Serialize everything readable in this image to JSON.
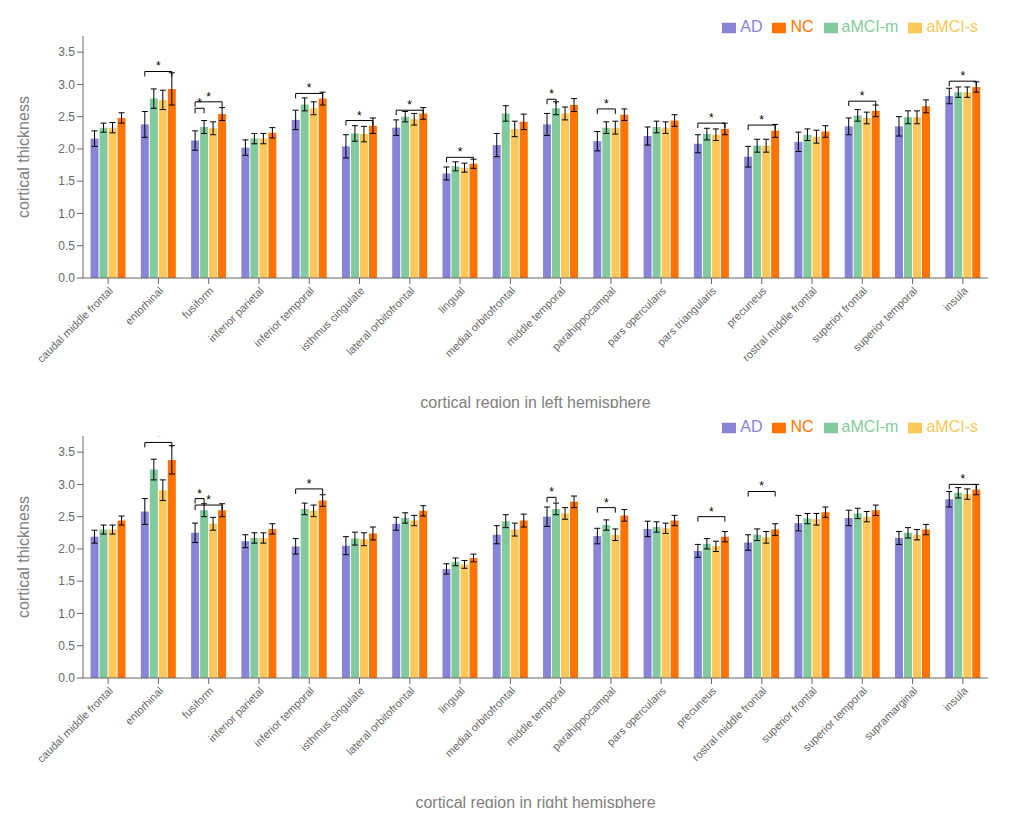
{
  "chart_data": [
    {
      "type": "bar",
      "xlabel": "cortical region in left hemisphere",
      "ylabel": "cortical thickness",
      "categories": [
        "caudal middle frontal",
        "entorhinal",
        "fusiform",
        "inferior parietal",
        "inferior temporal",
        "isthmus cingulate",
        "lateral orbitofrontal",
        "lingual",
        "medial orbitofrontal",
        "middle temporal",
        "parahippocampal",
        "pars opercularis",
        "pars triangularis",
        "precuneus",
        "rostral middle frontal",
        "superior frontal",
        "superior temporal",
        "insula"
      ],
      "series": [
        {
          "name": "AD",
          "color": "#8884d8",
          "values": [
            2.16,
            2.38,
            2.13,
            2.02,
            2.45,
            2.04,
            2.33,
            1.62,
            2.06,
            2.38,
            2.12,
            2.2,
            2.08,
            1.88,
            2.11,
            2.35,
            2.35,
            2.82
          ],
          "errors": [
            0.12,
            0.2,
            0.15,
            0.12,
            0.15,
            0.18,
            0.12,
            0.1,
            0.18,
            0.17,
            0.15,
            0.14,
            0.14,
            0.16,
            0.15,
            0.13,
            0.15,
            0.12
          ]
        },
        {
          "name": "aMCI-m",
          "color": "#82ca9d",
          "values": [
            2.33,
            2.78,
            2.34,
            2.16,
            2.69,
            2.24,
            2.5,
            1.73,
            2.55,
            2.63,
            2.33,
            2.34,
            2.23,
            2.05,
            2.22,
            2.52,
            2.49,
            2.88
          ],
          "errors": [
            0.07,
            0.15,
            0.1,
            0.08,
            0.1,
            0.12,
            0.08,
            0.07,
            0.12,
            0.1,
            0.09,
            0.09,
            0.09,
            0.1,
            0.09,
            0.09,
            0.1,
            0.08
          ]
        },
        {
          "name": "aMCI-s",
          "color": "#ffc658",
          "values": [
            2.33,
            2.76,
            2.32,
            2.16,
            2.63,
            2.23,
            2.46,
            1.71,
            2.31,
            2.55,
            2.33,
            2.33,
            2.22,
            2.05,
            2.19,
            2.48,
            2.49,
            2.88
          ],
          "errors": [
            0.08,
            0.15,
            0.1,
            0.08,
            0.1,
            0.12,
            0.09,
            0.07,
            0.12,
            0.1,
            0.1,
            0.09,
            0.09,
            0.1,
            0.1,
            0.09,
            0.1,
            0.08
          ]
        },
        {
          "name": "NC",
          "color": "#ff7300",
          "values": [
            2.48,
            2.93,
            2.54,
            2.25,
            2.78,
            2.36,
            2.55,
            1.77,
            2.42,
            2.68,
            2.53,
            2.44,
            2.31,
            2.28,
            2.27,
            2.59,
            2.66,
            2.96
          ],
          "errors": [
            0.08,
            0.25,
            0.1,
            0.08,
            0.1,
            0.12,
            0.09,
            0.07,
            0.12,
            0.1,
            0.09,
            0.09,
            0.09,
            0.1,
            0.09,
            0.09,
            0.1,
            0.08
          ]
        }
      ],
      "annotations": [
        {
          "text": "*",
          "category": "entorhinal",
          "from": "AD",
          "to": "NC",
          "y": 3.2
        },
        {
          "text": "*",
          "category": "fusiform",
          "from": "AD",
          "to": "aMCI-m",
          "y": 2.63
        },
        {
          "text": "*",
          "category": "fusiform",
          "from": "AD",
          "to": "NC",
          "y": 2.73
        },
        {
          "text": "*",
          "category": "inferior temporal",
          "from": "AD",
          "to": "NC",
          "y": 2.86
        },
        {
          "text": "*",
          "category": "isthmus cingulate",
          "from": "AD",
          "to": "NC",
          "y": 2.44
        },
        {
          "text": "*",
          "category": "lateral orbitofrontal",
          "from": "AD",
          "to": "NC",
          "y": 2.6
        },
        {
          "text": "*",
          "category": "lingual",
          "from": "AD",
          "to": "NC",
          "y": 1.87
        },
        {
          "text": "*",
          "category": "middle temporal",
          "from": "AD",
          "to": "aMCI-m",
          "y": 2.77
        },
        {
          "text": "*",
          "category": "parahippocampal",
          "from": "AD",
          "to": "aMCI-s",
          "y": 2.62
        },
        {
          "text": "*",
          "category": "pars triangularis",
          "from": "AD",
          "to": "NC",
          "y": 2.4
        },
        {
          "text": "*",
          "category": "precuneus",
          "from": "AD",
          "to": "NC",
          "y": 2.37
        },
        {
          "text": "*",
          "category": "superior frontal",
          "from": "AD",
          "to": "NC",
          "y": 2.74
        },
        {
          "text": "*",
          "category": "insula",
          "from": "AD",
          "to": "NC",
          "y": 3.05
        }
      ],
      "ylim": [
        0,
        3.75
      ],
      "yticks": [
        {
          "value": 0,
          "label": "0.0"
        },
        0.5,
        {
          "value": 1,
          "label": "1.0"
        },
        1.5,
        {
          "value": 2,
          "label": "2.0"
        },
        2.5,
        {
          "value": 3,
          "label": "3.0"
        },
        3.5
      ],
      "grid": false,
      "legend": "upper right"
    },
    {
      "type": "bar",
      "xlabel": "cortical region in right hemisphere",
      "ylabel": "cortical thickness",
      "categories": [
        "caudal middle frontal",
        "entorhinal",
        "fusiform",
        "inferior parietal",
        "inferior temporal",
        "isthmus cingulate",
        "lateral orbitofrontal",
        "lingual",
        "medial orbitofrontal",
        "middle temporal",
        "parahippocampal",
        "pars opercularis",
        "precuneus",
        "rostral middle frontal",
        "superior frontal",
        "superior temporal",
        "supramarginal",
        "insula"
      ],
      "series": [
        {
          "name": "AD",
          "color": "#8884d8",
          "values": [
            2.19,
            2.58,
            2.25,
            2.12,
            2.04,
            2.05,
            2.39,
            1.69,
            2.22,
            2.5,
            2.2,
            2.31,
            1.97,
            2.1,
            2.4,
            2.48,
            2.17,
            2.77
          ],
          "errors": [
            0.1,
            0.2,
            0.15,
            0.1,
            0.12,
            0.14,
            0.1,
            0.08,
            0.14,
            0.15,
            0.12,
            0.12,
            0.1,
            0.12,
            0.12,
            0.12,
            0.1,
            0.12
          ]
        },
        {
          "name": "aMCI-m",
          "color": "#82ca9d",
          "values": [
            2.3,
            3.23,
            2.6,
            2.17,
            2.62,
            2.16,
            2.48,
            1.8,
            2.43,
            2.62,
            2.37,
            2.34,
            2.08,
            2.22,
            2.47,
            2.55,
            2.25,
            2.87
          ],
          "errors": [
            0.07,
            0.16,
            0.1,
            0.08,
            0.09,
            0.1,
            0.08,
            0.06,
            0.1,
            0.09,
            0.08,
            0.08,
            0.08,
            0.09,
            0.08,
            0.08,
            0.08,
            0.08
          ]
        },
        {
          "name": "aMCI-s",
          "color": "#ffc658",
          "values": [
            2.3,
            2.91,
            2.39,
            2.17,
            2.59,
            2.15,
            2.44,
            1.76,
            2.3,
            2.55,
            2.22,
            2.32,
            2.04,
            2.18,
            2.46,
            2.5,
            2.22,
            2.85
          ],
          "errors": [
            0.07,
            0.16,
            0.1,
            0.08,
            0.09,
            0.1,
            0.08,
            0.06,
            0.1,
            0.09,
            0.09,
            0.08,
            0.08,
            0.09,
            0.09,
            0.08,
            0.08,
            0.08
          ]
        },
        {
          "name": "NC",
          "color": "#ff7300",
          "values": [
            2.44,
            3.38,
            2.6,
            2.31,
            2.75,
            2.24,
            2.59,
            1.86,
            2.44,
            2.73,
            2.52,
            2.44,
            2.19,
            2.3,
            2.57,
            2.6,
            2.3,
            2.92
          ],
          "errors": [
            0.07,
            0.22,
            0.1,
            0.08,
            0.09,
            0.1,
            0.08,
            0.06,
            0.1,
            0.09,
            0.09,
            0.08,
            0.08,
            0.09,
            0.08,
            0.08,
            0.08,
            0.08
          ]
        }
      ],
      "annotations": [
        {
          "text": "*",
          "category": "entorhinal",
          "from": "AD",
          "to": "NC",
          "y": 3.65
        },
        {
          "text": "*",
          "category": "fusiform",
          "from": "AD",
          "to": "aMCI-m",
          "y": 2.78
        },
        {
          "text": "*",
          "category": "fusiform",
          "from": "AD",
          "to": "NC",
          "y": 2.68
        },
        {
          "text": "*",
          "category": "inferior temporal",
          "from": "AD",
          "to": "NC",
          "y": 2.93
        },
        {
          "text": "*",
          "category": "middle temporal",
          "from": "AD",
          "to": "aMCI-m",
          "y": 2.8
        },
        {
          "text": "*",
          "category": "parahippocampal",
          "from": "AD",
          "to": "aMCI-s",
          "y": 2.64
        },
        {
          "text": "*",
          "category": "precuneus",
          "from": "AD",
          "to": "NC",
          "y": 2.5
        },
        {
          "text": "*",
          "category": "rostral middle frontal",
          "from": "AD",
          "to": "NC",
          "y": 2.89
        },
        {
          "text": "*",
          "category": "insula",
          "from": "AD",
          "to": "NC",
          "y": 3.0
        }
      ],
      "ylim": [
        0,
        3.75
      ],
      "yticks": [
        {
          "value": 0,
          "label": "0.0"
        },
        0.5,
        {
          "value": 1,
          "label": "1.0"
        },
        1.5,
        {
          "value": 2,
          "label": "2.0"
        },
        2.5,
        {
          "value": 3,
          "label": "3.0"
        },
        3.5
      ],
      "grid": false,
      "legend": "upper right"
    }
  ]
}
